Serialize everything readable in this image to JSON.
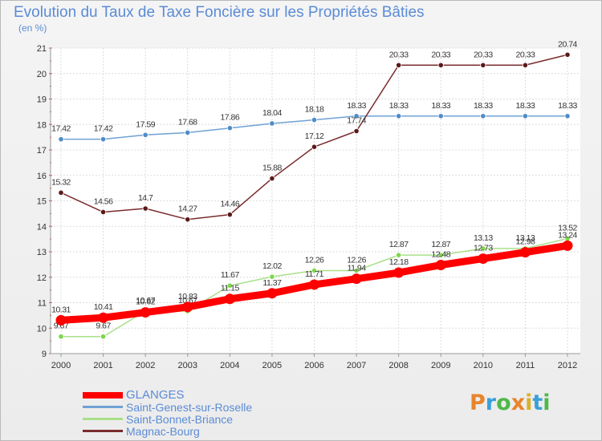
{
  "title": "Evolution du Taux de Taxe Foncière sur les Propriétés Bâties",
  "unit_label": "(en %)",
  "logo": {
    "letters": [
      "P",
      "r",
      "o",
      "x",
      "i",
      "t",
      "i"
    ],
    "colors": [
      "#e8852c",
      "#3aa0d9",
      "#4fb848",
      "#e8852c",
      "#d9b12c",
      "#3aa0d9",
      "#4fb848"
    ]
  },
  "chart_data": {
    "type": "line",
    "title": "Evolution du Taux de Taxe Foncière sur les Propriétés Bâties",
    "ylabel": "(en %)",
    "xlabel": "",
    "ylim": [
      9,
      21
    ],
    "yticks": [
      "9",
      "10",
      "11",
      "12",
      "13",
      "14",
      "15",
      "16",
      "17",
      "18",
      "19",
      "20",
      "21"
    ],
    "x": [
      "2000",
      "2001",
      "2002",
      "2003",
      "2004",
      "2005",
      "2006",
      "2007",
      "2008",
      "2009",
      "2010",
      "2011",
      "2012"
    ],
    "grid": true,
    "series": [
      {
        "name": "Saint-Genest-sur-Roselle",
        "color": "#6fa1d4",
        "marker_color": "#4f8cc7",
        "values": [
          17.42,
          17.42,
          17.59,
          17.68,
          17.86,
          18.04,
          18.18,
          18.33,
          18.33,
          18.33,
          18.33,
          18.33,
          18.33
        ],
        "labels": [
          "17.42",
          "17.42",
          "17.59",
          "17.68",
          "17.86",
          "18.04",
          "18.18",
          "18.33",
          "18.33",
          "18.33",
          "18.33",
          "18.33",
          "18.33"
        ]
      },
      {
        "name": "Saint-Bonnet-Briance",
        "color": "#a9e08a",
        "marker_color": "#7ed64a",
        "values": [
          9.67,
          9.67,
          10.67,
          10.67,
          11.67,
          12.02,
          12.26,
          12.26,
          12.87,
          12.87,
          13.13,
          13.13,
          13.52
        ],
        "labels": [
          "9.67",
          "9.67",
          "10.67",
          "10.67",
          "11.67",
          "12.02",
          "12.26",
          "12.26",
          "12.87",
          "12.87",
          "13.13",
          "13.13",
          "13.52"
        ]
      },
      {
        "name": "Magnac-Bourg",
        "color": "#7a2b2b",
        "marker_color": "#5a1a1a",
        "values": [
          15.32,
          14.56,
          14.7,
          14.27,
          14.46,
          15.88,
          17.12,
          17.74,
          20.33,
          20.33,
          20.33,
          20.33,
          20.74
        ],
        "labels": [
          "15.32",
          "14.56",
          "14.7",
          "14.27",
          "14.46",
          "15.88",
          "17.12",
          "17.74",
          "20.33",
          "20.33",
          "20.33",
          "20.33",
          "20.74"
        ]
      },
      {
        "name": "GLANGES",
        "color": "#ff0000",
        "marker_color": "#ff0000",
        "values": [
          10.31,
          10.41,
          10.62,
          10.83,
          11.15,
          11.37,
          11.71,
          11.94,
          12.18,
          12.48,
          12.73,
          12.98,
          13.24
        ],
        "labels": [
          "10.31",
          "10.41",
          "10.62",
          "10.83",
          "11.15",
          "11.37",
          "11.71",
          "11.94",
          "12.18",
          "12.48",
          "12.73",
          "12.98",
          "13.24"
        ]
      }
    ],
    "legend": {
      "position": "bottom-left",
      "entries": [
        "GLANGES",
        "Saint-Genest-sur-Roselle",
        "Saint-Bonnet-Briance",
        "Magnac-Bourg"
      ]
    }
  }
}
